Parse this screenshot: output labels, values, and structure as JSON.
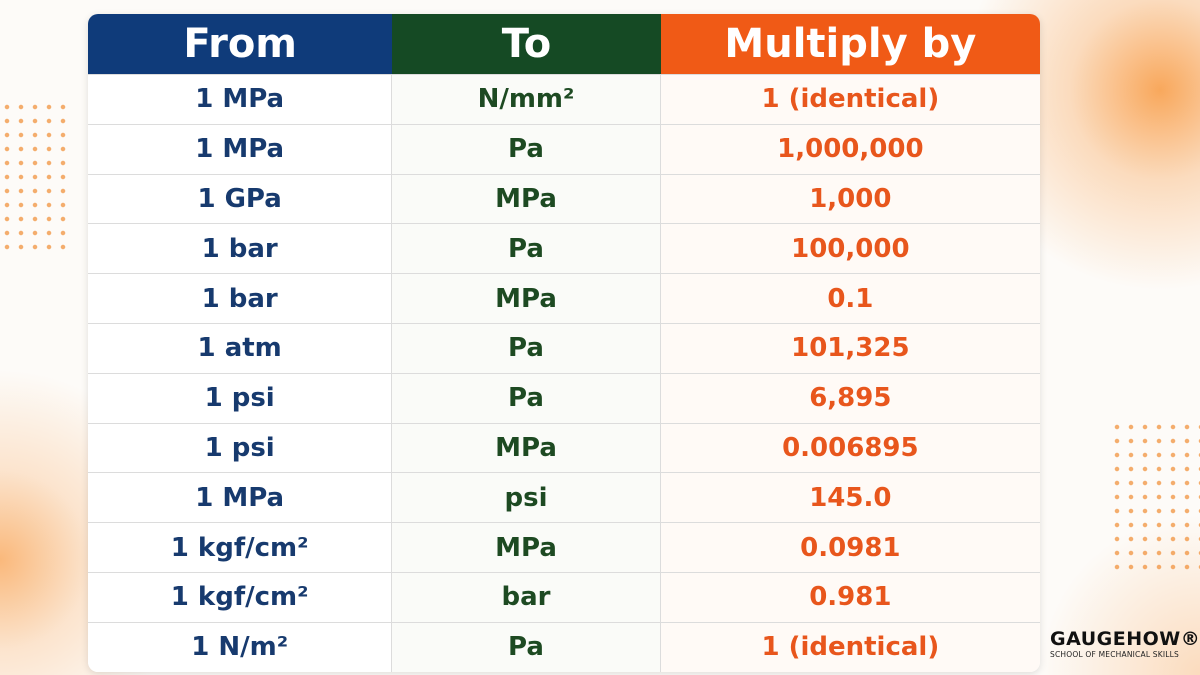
{
  "table": {
    "headers": [
      "From",
      "To",
      "Multiply by"
    ],
    "rows": [
      [
        "1 MPa",
        "N/mm²",
        "1 (identical)"
      ],
      [
        "1 MPa",
        "Pa",
        "1,000,000"
      ],
      [
        "1 GPa",
        "MPa",
        "1,000"
      ],
      [
        "1 bar",
        "Pa",
        "100,000"
      ],
      [
        "1 bar",
        "MPa",
        "0.1"
      ],
      [
        "1 atm",
        "Pa",
        "101,325"
      ],
      [
        "1 psi",
        "Pa",
        "6,895"
      ],
      [
        "1 psi",
        "MPa",
        "0.006895"
      ],
      [
        "1 MPa",
        "psi",
        "145.0"
      ],
      [
        "1 kgf/cm²",
        "MPa",
        "0.0981"
      ],
      [
        "1 kgf/cm²",
        "bar",
        "0.981"
      ],
      [
        "1 N/m²",
        "Pa",
        "1 (identical)"
      ]
    ]
  },
  "brand": {
    "name": "GAUGEHOW®",
    "tagline": "SCHOOL OF MECHANICAL SKILLS"
  }
}
